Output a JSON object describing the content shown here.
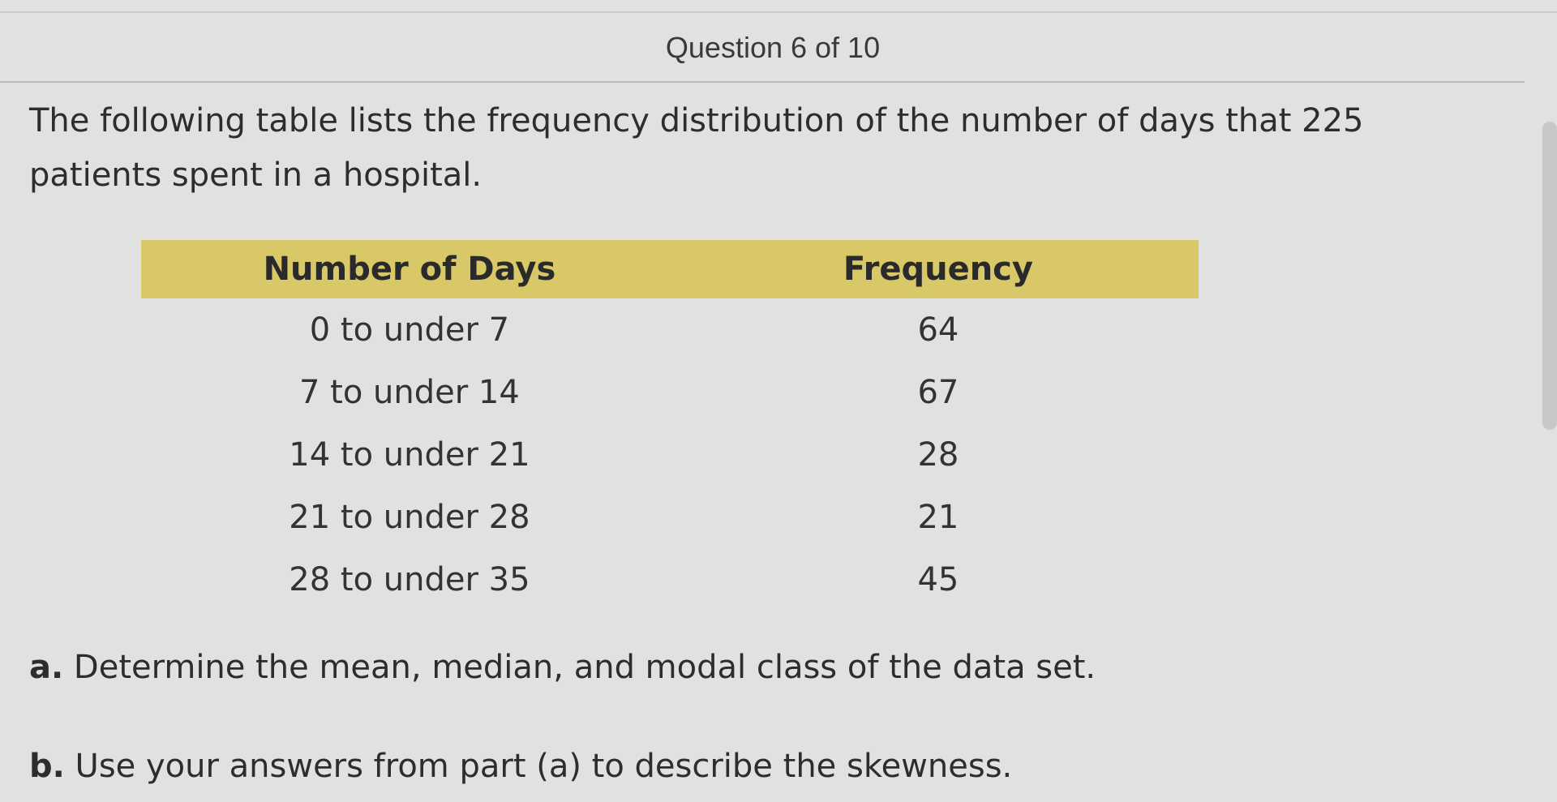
{
  "header": {
    "title": "Question 6 of 10"
  },
  "question": {
    "text": "The following table lists the frequency distribution of the number of days that 225 patients spent in a hospital."
  },
  "table": {
    "columns": [
      "Number of Days",
      "Frequency"
    ],
    "rows": [
      {
        "days": "0 to under 7",
        "frequency": "64"
      },
      {
        "days": "7 to under 14",
        "frequency": "67"
      },
      {
        "days": "14 to under 21",
        "frequency": "28"
      },
      {
        "days": "21 to under 28",
        "frequency": "21"
      },
      {
        "days": "28 to under 35",
        "frequency": "45"
      }
    ],
    "header_color": "#d8c868"
  },
  "parts": {
    "a": {
      "label": "a.",
      "text": "Determine the mean, median, and modal class of the data set."
    },
    "b": {
      "label": "b.",
      "text": "Use your answers from part (a) to describe the skewness."
    }
  }
}
